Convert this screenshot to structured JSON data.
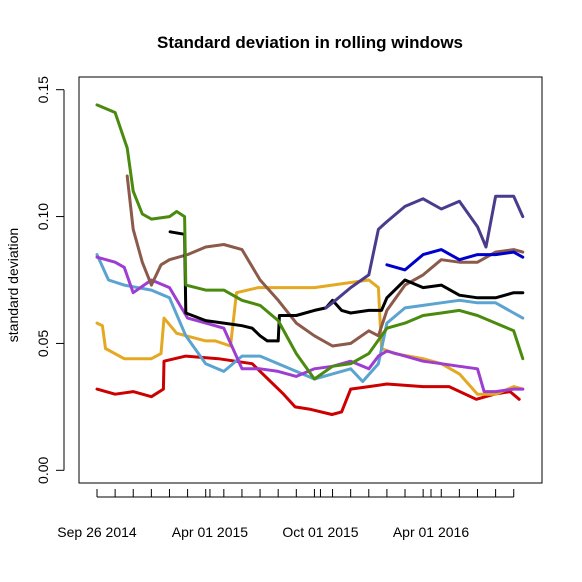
{
  "chart_data": {
    "type": "line",
    "title": "Standard deviation in rolling windows",
    "xlabel": "",
    "ylabel": "standard deviation",
    "ylim": [
      -0.005,
      0.155
    ],
    "xlim": [
      "2014-09-26",
      "2016-09-02"
    ],
    "y_ticks": [
      "0.00",
      "0.05",
      "0.10",
      "0.15"
    ],
    "x_tick_labels": [
      {
        "date": "2014-09-26",
        "label": "Sep 26 2014"
      },
      {
        "date": "2015-04-01",
        "label": "Apr 01 2015"
      },
      {
        "date": "2015-10-01",
        "label": "Oct 01 2015"
      },
      {
        "date": "2016-04-01",
        "label": "Apr 01 2016"
      }
    ],
    "minor_tick_dates": [
      "2014-09-26",
      "2014-10-26",
      "2014-11-25",
      "2014-12-25",
      "2015-01-24",
      "2015-02-23",
      "2015-03-25",
      "2015-04-24",
      "2015-05-24",
      "2015-06-23",
      "2015-07-23",
      "2015-08-22",
      "2015-09-21",
      "2015-10-21",
      "2015-11-20",
      "2015-12-20",
      "2016-01-19",
      "2016-02-18",
      "2016-03-19",
      "2016-04-18",
      "2016-05-18",
      "2016-06-17",
      "2016-07-17",
      "2016-08-16"
    ],
    "grid": false,
    "legend": "none",
    "series": [
      {
        "color": "#CC0000",
        "points": [
          [
            "2014-09-26",
            0.032
          ],
          [
            "2014-10-26",
            0.03
          ],
          [
            "2014-11-25",
            0.031
          ],
          [
            "2014-12-25",
            0.029
          ],
          [
            "2015-01-14",
            0.032
          ],
          [
            "2015-01-15",
            0.043
          ],
          [
            "2015-02-20",
            0.045
          ],
          [
            "2015-04-15",
            0.044
          ],
          [
            "2015-06-10",
            0.042
          ],
          [
            "2015-08-01",
            0.03
          ],
          [
            "2015-08-20",
            0.025
          ],
          [
            "2015-09-15",
            0.024
          ],
          [
            "2015-10-20",
            0.022
          ],
          [
            "2015-11-05",
            0.023
          ],
          [
            "2015-11-20",
            0.032
          ],
          [
            "2015-12-20",
            0.033
          ],
          [
            "2016-01-19",
            0.034
          ],
          [
            "2016-03-19",
            0.033
          ],
          [
            "2016-05-01",
            0.033
          ],
          [
            "2016-06-15",
            0.028
          ],
          [
            "2016-07-15",
            0.03
          ],
          [
            "2016-08-10",
            0.031
          ],
          [
            "2016-08-25",
            0.028
          ]
        ]
      },
      {
        "color": "#E5A823",
        "points": [
          [
            "2014-09-26",
            0.058
          ],
          [
            "2014-10-05",
            0.057
          ],
          [
            "2014-10-10",
            0.048
          ],
          [
            "2014-11-10",
            0.044
          ],
          [
            "2014-12-25",
            0.044
          ],
          [
            "2015-01-10",
            0.046
          ],
          [
            "2015-01-15",
            0.06
          ],
          [
            "2015-02-05",
            0.054
          ],
          [
            "2015-03-25",
            0.051
          ],
          [
            "2015-04-10",
            0.051
          ],
          [
            "2015-05-05",
            0.049
          ],
          [
            "2015-05-15",
            0.07
          ],
          [
            "2015-06-20",
            0.072
          ],
          [
            "2015-07-20",
            0.072
          ],
          [
            "2015-09-21",
            0.072
          ],
          [
            "2015-11-20",
            0.074
          ],
          [
            "2015-12-20",
            0.075
          ],
          [
            "2016-01-05",
            0.072
          ],
          [
            "2016-01-10",
            0.048
          ],
          [
            "2016-02-01",
            0.046
          ],
          [
            "2016-03-19",
            0.044
          ],
          [
            "2016-04-18",
            0.042
          ],
          [
            "2016-05-18",
            0.038
          ],
          [
            "2016-06-17",
            0.03
          ],
          [
            "2016-07-17",
            0.03
          ],
          [
            "2016-08-16",
            0.033
          ],
          [
            "2016-08-31",
            0.032
          ]
        ]
      },
      {
        "color": "#5BA3D0",
        "points": [
          [
            "2014-09-26",
            0.085
          ],
          [
            "2014-10-15",
            0.075
          ],
          [
            "2014-11-10",
            0.073
          ],
          [
            "2014-12-25",
            0.071
          ],
          [
            "2015-01-24",
            0.068
          ],
          [
            "2015-02-20",
            0.053
          ],
          [
            "2015-03-25",
            0.042
          ],
          [
            "2015-04-24",
            0.039
          ],
          [
            "2015-05-24",
            0.045
          ],
          [
            "2015-06-23",
            0.045
          ],
          [
            "2015-07-23",
            0.042
          ],
          [
            "2015-08-22",
            0.039
          ],
          [
            "2015-09-21",
            0.036
          ],
          [
            "2015-10-21",
            0.038
          ],
          [
            "2015-11-20",
            0.04
          ],
          [
            "2015-12-10",
            0.035
          ],
          [
            "2016-01-05",
            0.042
          ],
          [
            "2016-01-19",
            0.058
          ],
          [
            "2016-02-18",
            0.064
          ],
          [
            "2016-03-19",
            0.065
          ],
          [
            "2016-04-18",
            0.066
          ],
          [
            "2016-05-18",
            0.067
          ],
          [
            "2016-06-17",
            0.066
          ],
          [
            "2016-07-17",
            0.066
          ],
          [
            "2016-08-16",
            0.062
          ],
          [
            "2016-08-31",
            0.06
          ]
        ]
      },
      {
        "color": "#9E3DD1",
        "points": [
          [
            "2014-09-26",
            0.084
          ],
          [
            "2014-10-26",
            0.082
          ],
          [
            "2014-11-10",
            0.08
          ],
          [
            "2014-11-25",
            0.07
          ],
          [
            "2014-12-25",
            0.075
          ],
          [
            "2015-01-24",
            0.072
          ],
          [
            "2015-02-23",
            0.06
          ],
          [
            "2015-03-25",
            0.058
          ],
          [
            "2015-04-24",
            0.056
          ],
          [
            "2015-05-24",
            0.04
          ],
          [
            "2015-06-23",
            0.04
          ],
          [
            "2015-07-23",
            0.039
          ],
          [
            "2015-08-22",
            0.037
          ],
          [
            "2015-09-21",
            0.04
          ],
          [
            "2015-10-21",
            0.041
          ],
          [
            "2015-11-20",
            0.043
          ],
          [
            "2015-12-20",
            0.04
          ],
          [
            "2016-01-05",
            0.045
          ],
          [
            "2016-01-19",
            0.047
          ],
          [
            "2016-02-18",
            0.045
          ],
          [
            "2016-03-19",
            0.043
          ],
          [
            "2016-04-18",
            0.042
          ],
          [
            "2016-05-18",
            0.041
          ],
          [
            "2016-06-17",
            0.04
          ],
          [
            "2016-06-28",
            0.031
          ],
          [
            "2016-07-17",
            0.031
          ],
          [
            "2016-08-16",
            0.032
          ],
          [
            "2016-08-31",
            0.032
          ]
        ]
      },
      {
        "color": "#8B5A4A",
        "points": [
          [
            "2014-11-15",
            0.116
          ],
          [
            "2014-11-25",
            0.095
          ],
          [
            "2014-12-10",
            0.082
          ],
          [
            "2014-12-25",
            0.073
          ],
          [
            "2015-01-10",
            0.081
          ],
          [
            "2015-01-24",
            0.083
          ],
          [
            "2015-02-23",
            0.085
          ],
          [
            "2015-03-25",
            0.088
          ],
          [
            "2015-04-24",
            0.089
          ],
          [
            "2015-05-24",
            0.087
          ],
          [
            "2015-06-23",
            0.075
          ],
          [
            "2015-07-23",
            0.067
          ],
          [
            "2015-08-22",
            0.058
          ],
          [
            "2015-09-21",
            0.053
          ],
          [
            "2015-10-21",
            0.049
          ],
          [
            "2015-11-20",
            0.05
          ],
          [
            "2015-12-20",
            0.055
          ],
          [
            "2016-01-05",
            0.053
          ],
          [
            "2016-01-19",
            0.063
          ],
          [
            "2016-02-18",
            0.073
          ],
          [
            "2016-03-19",
            0.077
          ],
          [
            "2016-04-18",
            0.083
          ],
          [
            "2016-05-18",
            0.082
          ],
          [
            "2016-06-17",
            0.082
          ],
          [
            "2016-07-17",
            0.086
          ],
          [
            "2016-08-16",
            0.087
          ],
          [
            "2016-08-31",
            0.086
          ]
        ]
      },
      {
        "color": "#000000",
        "points": [
          [
            "2015-01-25",
            0.094
          ],
          [
            "2015-02-18",
            0.093
          ],
          [
            "2015-02-20",
            0.062
          ],
          [
            "2015-03-25",
            0.059
          ],
          [
            "2015-04-24",
            0.058
          ],
          [
            "2015-05-24",
            0.057
          ],
          [
            "2015-06-10",
            0.056
          ],
          [
            "2015-06-23",
            0.053
          ],
          [
            "2015-07-05",
            0.051
          ],
          [
            "2015-07-23",
            0.051
          ],
          [
            "2015-07-25",
            0.061
          ],
          [
            "2015-08-22",
            0.061
          ],
          [
            "2015-09-21",
            0.063
          ],
          [
            "2015-10-10",
            0.064
          ],
          [
            "2015-10-21",
            0.067
          ],
          [
            "2015-11-05",
            0.063
          ],
          [
            "2015-11-20",
            0.062
          ],
          [
            "2015-12-20",
            0.063
          ],
          [
            "2016-01-10",
            0.063
          ],
          [
            "2016-01-19",
            0.068
          ],
          [
            "2016-02-18",
            0.075
          ],
          [
            "2016-03-19",
            0.072
          ],
          [
            "2016-04-18",
            0.073
          ],
          [
            "2016-05-18",
            0.069
          ],
          [
            "2016-06-17",
            0.068
          ],
          [
            "2016-07-17",
            0.068
          ],
          [
            "2016-08-16",
            0.07
          ],
          [
            "2016-08-31",
            0.07
          ]
        ]
      },
      {
        "color": "#4A8A0E",
        "points": [
          [
            "2014-09-26",
            0.144
          ],
          [
            "2014-10-26",
            0.141
          ],
          [
            "2014-11-15",
            0.127
          ],
          [
            "2014-11-25",
            0.11
          ],
          [
            "2014-12-10",
            0.101
          ],
          [
            "2014-12-25",
            0.099
          ],
          [
            "2015-01-24",
            0.1
          ],
          [
            "2015-02-05",
            0.102
          ],
          [
            "2015-02-18",
            0.1
          ],
          [
            "2015-02-20",
            0.073
          ],
          [
            "2015-03-25",
            0.071
          ],
          [
            "2015-04-24",
            0.071
          ],
          [
            "2015-05-24",
            0.067
          ],
          [
            "2015-06-23",
            0.065
          ],
          [
            "2015-07-23",
            0.059
          ],
          [
            "2015-08-22",
            0.046
          ],
          [
            "2015-09-21",
            0.036
          ],
          [
            "2015-10-21",
            0.041
          ],
          [
            "2015-11-20",
            0.042
          ],
          [
            "2015-12-20",
            0.046
          ],
          [
            "2016-01-19",
            0.056
          ],
          [
            "2016-02-18",
            0.058
          ],
          [
            "2016-03-19",
            0.061
          ],
          [
            "2016-04-18",
            0.062
          ],
          [
            "2016-05-18",
            0.063
          ],
          [
            "2016-06-17",
            0.061
          ],
          [
            "2016-07-17",
            0.058
          ],
          [
            "2016-08-16",
            0.055
          ],
          [
            "2016-08-31",
            0.044
          ]
        ]
      },
      {
        "color": "#4B3B8C",
        "points": [
          [
            "2015-10-10",
            0.064
          ],
          [
            "2015-10-21",
            0.066
          ],
          [
            "2015-11-20",
            0.072
          ],
          [
            "2015-12-20",
            0.077
          ],
          [
            "2016-01-05",
            0.095
          ],
          [
            "2016-01-19",
            0.098
          ],
          [
            "2016-02-18",
            0.104
          ],
          [
            "2016-03-19",
            0.107
          ],
          [
            "2016-04-18",
            0.103
          ],
          [
            "2016-05-18",
            0.106
          ],
          [
            "2016-06-17",
            0.096
          ],
          [
            "2016-07-01",
            0.088
          ],
          [
            "2016-07-17",
            0.108
          ],
          [
            "2016-08-16",
            0.108
          ],
          [
            "2016-08-31",
            0.1
          ]
        ]
      },
      {
        "color": "#0000CC",
        "points": [
          [
            "2016-01-19",
            0.081
          ],
          [
            "2016-02-18",
            0.079
          ],
          [
            "2016-03-19",
            0.085
          ],
          [
            "2016-04-18",
            0.087
          ],
          [
            "2016-05-18",
            0.083
          ],
          [
            "2016-06-17",
            0.085
          ],
          [
            "2016-07-17",
            0.085
          ],
          [
            "2016-08-16",
            0.086
          ],
          [
            "2016-08-31",
            0.084
          ]
        ]
      }
    ]
  }
}
